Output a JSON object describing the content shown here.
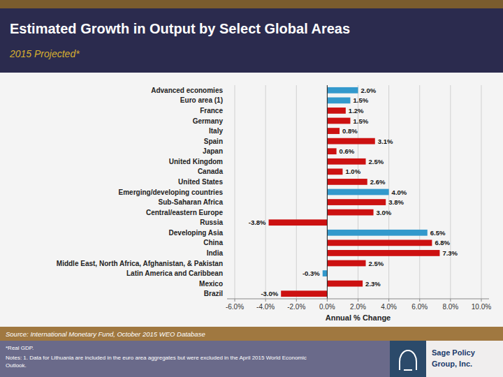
{
  "chart_data": {
    "type": "bar",
    "orientation": "horizontal",
    "title": "Estimated Growth in Output by Select Global Areas",
    "subtitle": "2015 Projected*",
    "x_label": "Annual % Change",
    "categories": [
      "Brazil",
      "Mexico",
      "Latin America and Caribbean",
      "Middle East, North Africa, Afghanistan, & Pakistan",
      "India",
      "China",
      "Developing Asia",
      "Russia",
      "Central/eastern Europe",
      "Sub-Saharan Africa",
      "Emerging/developing countries",
      "United States",
      "Canada",
      "United Kingdom",
      "Japan",
      "Spain",
      "Italy",
      "Germany",
      "France",
      "Euro area (1)",
      "Advanced economies"
    ],
    "values": [
      -3.0,
      2.3,
      -0.3,
      2.5,
      7.3,
      6.8,
      6.5,
      -3.8,
      3.0,
      3.8,
      4.0,
      2.6,
      1.0,
      2.5,
      0.6,
      3.1,
      0.8,
      1.5,
      1.2,
      1.5,
      2.0
    ],
    "value_labels": [
      "-3.0%",
      "2.3%",
      "-0.3%",
      "2.5%",
      "7.3%",
      "6.8%",
      "6.5%",
      "-3.8%",
      "3.0%",
      "3.8%",
      "4.0%",
      "2.6%",
      "1.0%",
      "2.5%",
      "0.6%",
      "3.1%",
      "0.8%",
      "1.5%",
      "1.2%",
      "1.5%",
      "2.0%"
    ],
    "colors": [
      "#cc1111",
      "#cc1111",
      "#3399cc",
      "#cc1111",
      "#cc1111",
      "#cc1111",
      "#3399cc",
      "#cc1111",
      "#cc1111",
      "#cc1111",
      "#3399cc",
      "#cc1111",
      "#cc1111",
      "#cc1111",
      "#cc1111",
      "#cc1111",
      "#cc1111",
      "#cc1111",
      "#cc1111",
      "#3399cc",
      "#3399cc"
    ],
    "data_labels": true,
    "xlim": [
      -6.5,
      10.5
    ],
    "xticks": [
      {
        "value": -6.0,
        "label": "-6.0%"
      },
      {
        "value": -4.0,
        "label": "-4.0%"
      },
      {
        "value": -2.0,
        "label": "-2.0%"
      },
      {
        "value": 0.0,
        "label": "0.0%"
      },
      {
        "value": 2.0,
        "label": "2.0%"
      },
      {
        "value": 4.0,
        "label": "4.0%"
      },
      {
        "value": 6.0,
        "label": "6.0%"
      },
      {
        "value": 8.0,
        "label": "8.0%"
      },
      {
        "value": 10.0,
        "label": "10.0%"
      }
    ],
    "grid": true,
    "annotations": [
      "Source: International Monetary Fund, October 2015 WEO Database",
      "*Real GDP.",
      "Notes: 1. Data for Lithuania are included in the euro area aggregates but were excluded in the April 2015 World Economic\nOutlook.",
      "Sage Policy",
      "Group, Inc."
    ]
  }
}
